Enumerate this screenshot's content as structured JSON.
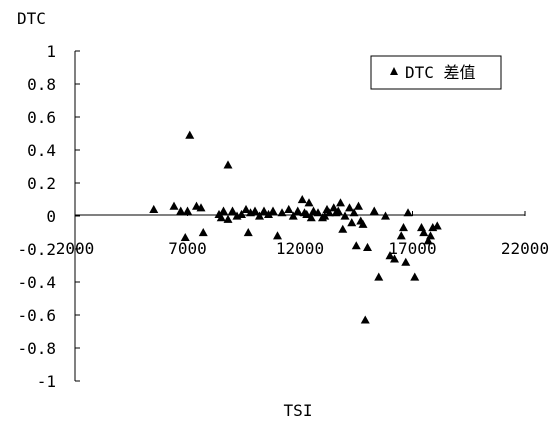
{
  "chart_data": {
    "type": "scatter",
    "title": "",
    "xlabel": "TSI",
    "ylabel": "DTC",
    "xlim": [
      2000,
      22000
    ],
    "ylim": [
      -1,
      1
    ],
    "x_ticks": [
      2000,
      7000,
      12000,
      17000,
      22000
    ],
    "x_tick_labels": [
      "2000",
      "7000",
      "12000",
      "17000",
      "22000"
    ],
    "y_ticks": [
      1,
      0.8,
      0.6,
      0.4,
      0.2,
      0,
      -0.2,
      -0.4,
      -0.6,
      -0.8,
      -1
    ],
    "y_tick_labels": [
      "1",
      "0.8",
      "0.6",
      "0.4",
      "0.2",
      "0",
      "-0.2",
      "-0.4",
      "-0.6",
      "-0.8",
      "-1"
    ],
    "grid": false,
    "legend_position": "top-right",
    "marker": "triangle",
    "marker_color": "#000000",
    "series": [
      {
        "name": "DTC 差值",
        "points": [
          [
            5500,
            0.04
          ],
          [
            6400,
            0.06
          ],
          [
            6700,
            0.03
          ],
          [
            6900,
            -0.13
          ],
          [
            7000,
            0.03
          ],
          [
            7100,
            0.49
          ],
          [
            7400,
            0.06
          ],
          [
            7600,
            0.05
          ],
          [
            7700,
            -0.1
          ],
          [
            8400,
            0.01
          ],
          [
            8500,
            -0.01
          ],
          [
            8600,
            0.03
          ],
          [
            8800,
            0.31
          ],
          [
            8800,
            -0.02
          ],
          [
            9000,
            0.03
          ],
          [
            9200,
            0.0
          ],
          [
            9400,
            0.01
          ],
          [
            9600,
            0.04
          ],
          [
            9700,
            -0.1
          ],
          [
            9800,
            0.02
          ],
          [
            10000,
            0.03
          ],
          [
            10200,
            0.0
          ],
          [
            10400,
            0.03
          ],
          [
            10600,
            0.01
          ],
          [
            10800,
            0.03
          ],
          [
            11000,
            -0.12
          ],
          [
            11200,
            0.02
          ],
          [
            11500,
            0.04
          ],
          [
            11700,
            0.0
          ],
          [
            11900,
            0.03
          ],
          [
            12100,
            0.1
          ],
          [
            12200,
            0.02
          ],
          [
            12300,
            0.01
          ],
          [
            12400,
            0.08
          ],
          [
            12500,
            -0.01
          ],
          [
            12600,
            0.03
          ],
          [
            12800,
            0.02
          ],
          [
            13000,
            -0.01
          ],
          [
            13100,
            0.0
          ],
          [
            13200,
            0.04
          ],
          [
            13300,
            0.02
          ],
          [
            13500,
            0.05
          ],
          [
            13600,
            0.02
          ],
          [
            13700,
            0.03
          ],
          [
            13800,
            0.08
          ],
          [
            13900,
            -0.08
          ],
          [
            14000,
            0.0
          ],
          [
            14200,
            0.05
          ],
          [
            14300,
            -0.04
          ],
          [
            14400,
            0.02
          ],
          [
            14500,
            -0.18
          ],
          [
            14600,
            0.06
          ],
          [
            14700,
            -0.03
          ],
          [
            14800,
            -0.05
          ],
          [
            14900,
            -0.63
          ],
          [
            15000,
            -0.19
          ],
          [
            15300,
            0.03
          ],
          [
            15500,
            -0.37
          ],
          [
            15800,
            0.0
          ],
          [
            16000,
            -0.24
          ],
          [
            16200,
            -0.26
          ],
          [
            16500,
            -0.12
          ],
          [
            16600,
            -0.07
          ],
          [
            16700,
            -0.28
          ],
          [
            16800,
            0.02
          ],
          [
            17100,
            -0.37
          ],
          [
            17400,
            -0.07
          ],
          [
            17500,
            -0.1
          ],
          [
            17700,
            -0.15
          ],
          [
            17800,
            -0.12
          ],
          [
            17900,
            -0.07
          ],
          [
            18100,
            -0.06
          ]
        ]
      }
    ]
  }
}
